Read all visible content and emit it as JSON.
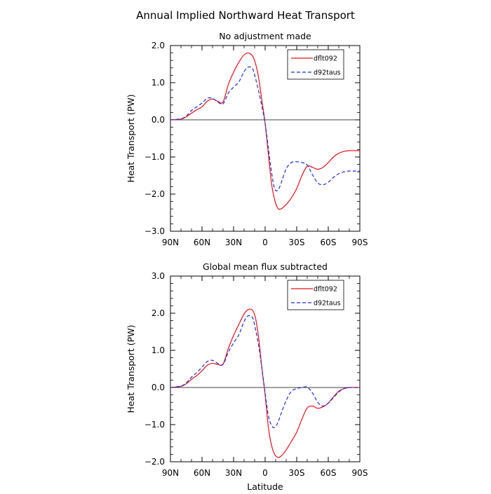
{
  "title": "Annual Implied Northward Heat Transport",
  "chart_data": [
    {
      "type": "line",
      "title": "No adjustment made",
      "xlabel": "",
      "ylabel": "Heat Transport (PW)",
      "xlim": [
        -90,
        90
      ],
      "ylim": [
        -3.0,
        2.0
      ],
      "x_ticks": [
        -90,
        -60,
        -30,
        0,
        30,
        60,
        90
      ],
      "x_tick_labels": [
        "90N",
        "60N",
        "30N",
        "0",
        "30S",
        "60S",
        "90S"
      ],
      "y_ticks": [
        2.0,
        1.0,
        0.0,
        -1.0,
        -2.0,
        -3.0
      ],
      "y_tick_labels": [
        "2.0",
        "1.0",
        "0.0",
        "−1.0",
        "−2.0",
        "−3.0"
      ],
      "zero_line": true,
      "legend_position": "top-right",
      "series": [
        {
          "name": "dflt092",
          "color": "#e8101a",
          "dash": "solid",
          "x": [
            -90,
            -80,
            -75,
            -70,
            -65,
            -60,
            -55,
            -50,
            -45,
            -40,
            -35,
            -30,
            -25,
            -20,
            -16,
            -12,
            -9,
            -6,
            -3,
            0,
            3,
            6,
            9,
            12,
            15,
            20,
            25,
            30,
            35,
            40,
            45,
            50,
            55,
            60,
            65,
            70,
            75,
            80,
            85,
            90
          ],
          "y": [
            0.0,
            0.02,
            0.08,
            0.18,
            0.27,
            0.35,
            0.5,
            0.56,
            0.5,
            0.48,
            0.95,
            1.28,
            1.55,
            1.75,
            1.8,
            1.72,
            1.5,
            1.1,
            0.5,
            -0.1,
            -0.9,
            -1.7,
            -2.15,
            -2.38,
            -2.4,
            -2.28,
            -2.1,
            -1.85,
            -1.5,
            -1.25,
            -1.28,
            -1.33,
            -1.28,
            -1.15,
            -1.0,
            -0.9,
            -0.85,
            -0.83,
            -0.83,
            -0.83
          ]
        },
        {
          "name": "d92taus",
          "color": "#1f2ed6",
          "dash": "dashed",
          "x": [
            -90,
            -80,
            -75,
            -70,
            -65,
            -60,
            -55,
            -50,
            -45,
            -40,
            -35,
            -30,
            -25,
            -20,
            -16,
            -12,
            -9,
            -6,
            -3,
            0,
            3,
            6,
            9,
            12,
            15,
            20,
            25,
            30,
            35,
            40,
            45,
            50,
            55,
            60,
            65,
            70,
            75,
            80,
            85,
            90
          ],
          "y": [
            0.0,
            0.03,
            0.1,
            0.25,
            0.35,
            0.45,
            0.58,
            0.58,
            0.48,
            0.43,
            0.72,
            0.88,
            1.02,
            1.3,
            1.42,
            1.38,
            1.1,
            0.75,
            0.35,
            -0.1,
            -0.75,
            -1.4,
            -1.85,
            -1.9,
            -1.72,
            -1.32,
            -1.15,
            -1.13,
            -1.15,
            -1.22,
            -1.48,
            -1.7,
            -1.75,
            -1.68,
            -1.55,
            -1.45,
            -1.4,
            -1.38,
            -1.38,
            -1.38
          ]
        }
      ]
    },
    {
      "type": "line",
      "title": "Global mean flux subtracted",
      "xlabel": "Latitude",
      "ylabel": "Heat Transport (PW)",
      "xlim": [
        -90,
        90
      ],
      "ylim": [
        -2.0,
        3.0
      ],
      "x_ticks": [
        -90,
        -60,
        -30,
        0,
        30,
        60,
        90
      ],
      "x_tick_labels": [
        "90N",
        "60N",
        "30N",
        "0",
        "30S",
        "60S",
        "90S"
      ],
      "y_ticks": [
        3.0,
        2.0,
        1.0,
        0.0,
        -1.0,
        -2.0
      ],
      "y_tick_labels": [
        "3.0",
        "2.0",
        "1.0",
        "0.0",
        "−1.0",
        "−2.0"
      ],
      "zero_line": true,
      "legend_position": "top-right",
      "series": [
        {
          "name": "dflt092",
          "color": "#e8101a",
          "dash": "solid",
          "x": [
            -90,
            -80,
            -75,
            -70,
            -65,
            -60,
            -55,
            -50,
            -45,
            -40,
            -35,
            -30,
            -25,
            -20,
            -16,
            -12,
            -9,
            -6,
            -3,
            0,
            3,
            6,
            9,
            12,
            15,
            20,
            25,
            30,
            35,
            40,
            45,
            50,
            55,
            60,
            65,
            70,
            75,
            80,
            85,
            90
          ],
          "y": [
            0.0,
            0.03,
            0.1,
            0.22,
            0.32,
            0.45,
            0.6,
            0.65,
            0.62,
            0.63,
            1.05,
            1.4,
            1.7,
            1.98,
            2.1,
            2.08,
            1.85,
            1.3,
            0.5,
            -0.2,
            -1.05,
            -1.55,
            -1.8,
            -1.88,
            -1.85,
            -1.68,
            -1.45,
            -1.2,
            -0.85,
            -0.55,
            -0.5,
            -0.56,
            -0.52,
            -0.42,
            -0.25,
            -0.1,
            -0.03,
            0.0,
            0.0,
            0.0
          ]
        },
        {
          "name": "d92taus",
          "color": "#1f2ed6",
          "dash": "dashed",
          "x": [
            -90,
            -80,
            -75,
            -70,
            -65,
            -60,
            -55,
            -50,
            -45,
            -40,
            -35,
            -30,
            -25,
            -20,
            -16,
            -12,
            -9,
            -6,
            -3,
            0,
            3,
            6,
            9,
            12,
            15,
            20,
            25,
            30,
            35,
            40,
            45,
            50,
            55,
            60,
            65,
            70,
            75,
            80,
            85,
            90
          ],
          "y": [
            0.0,
            0.04,
            0.12,
            0.28,
            0.4,
            0.55,
            0.7,
            0.73,
            0.65,
            0.62,
            0.95,
            1.2,
            1.42,
            1.78,
            1.93,
            1.88,
            1.55,
            1.1,
            0.5,
            -0.15,
            -0.75,
            -1.02,
            -1.08,
            -0.95,
            -0.72,
            -0.35,
            -0.1,
            -0.03,
            0.0,
            0.01,
            -0.15,
            -0.4,
            -0.5,
            -0.42,
            -0.27,
            -0.12,
            -0.03,
            0.0,
            0.0,
            0.0
          ]
        }
      ]
    }
  ]
}
